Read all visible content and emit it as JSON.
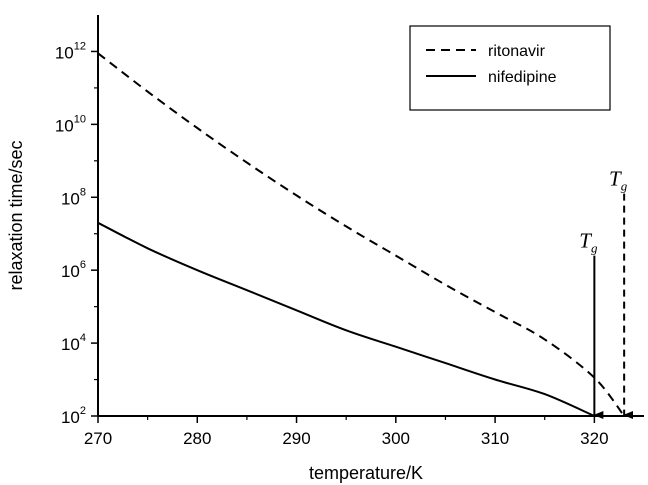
{
  "chart_data": {
    "type": "line",
    "xlabel": "temperature/K",
    "ylabel": "relaxation time/sec",
    "xlim": [
      270,
      325
    ],
    "ylim_log10": [
      2,
      13
    ],
    "y_scale": "log",
    "x_ticks": [
      270,
      280,
      290,
      300,
      310,
      320
    ],
    "y_ticks": [
      {
        "base": "10",
        "exp": "2",
        "value": 100
      },
      {
        "base": "10",
        "exp": "4",
        "value": 10000
      },
      {
        "base": "10",
        "exp": "6",
        "value": 1000000
      },
      {
        "base": "10",
        "exp": "8",
        "value": 100000000
      },
      {
        "base": "10",
        "exp": "10",
        "value": 10000000000
      },
      {
        "base": "10",
        "exp": "12",
        "value": 1000000000000
      }
    ],
    "grid": false,
    "legend_position": "top-right",
    "series": [
      {
        "name": "ritonavir",
        "style": "dashed",
        "color": "#000000",
        "x": [
          270,
          275,
          280,
          285,
          290,
          295,
          300,
          305,
          310,
          315,
          320,
          323
        ],
        "log10_y": [
          11.95,
          10.9,
          9.9,
          8.95,
          8.05,
          7.2,
          6.4,
          5.6,
          4.85,
          4.1,
          3.05,
          2.0
        ]
      },
      {
        "name": "nifedipine",
        "style": "solid",
        "color": "#000000",
        "x": [
          270,
          275,
          280,
          285,
          290,
          295,
          300,
          305,
          310,
          315,
          320
        ],
        "log10_y": [
          7.3,
          6.6,
          6.0,
          5.45,
          4.9,
          4.35,
          3.9,
          3.45,
          3.0,
          2.6,
          2.0
        ]
      }
    ],
    "annotations": [
      {
        "series": "nifedipine",
        "label": "T",
        "sub": "g",
        "x": 320,
        "arrow_style": "solid",
        "arrow_from_log10": 6.4,
        "arrow_to_log10": 2.0
      },
      {
        "series": "ritonavir",
        "label": "T",
        "sub": "g",
        "x": 323,
        "arrow_style": "dashed",
        "arrow_from_log10": 8.1,
        "arrow_to_log10": 2.0
      }
    ]
  }
}
